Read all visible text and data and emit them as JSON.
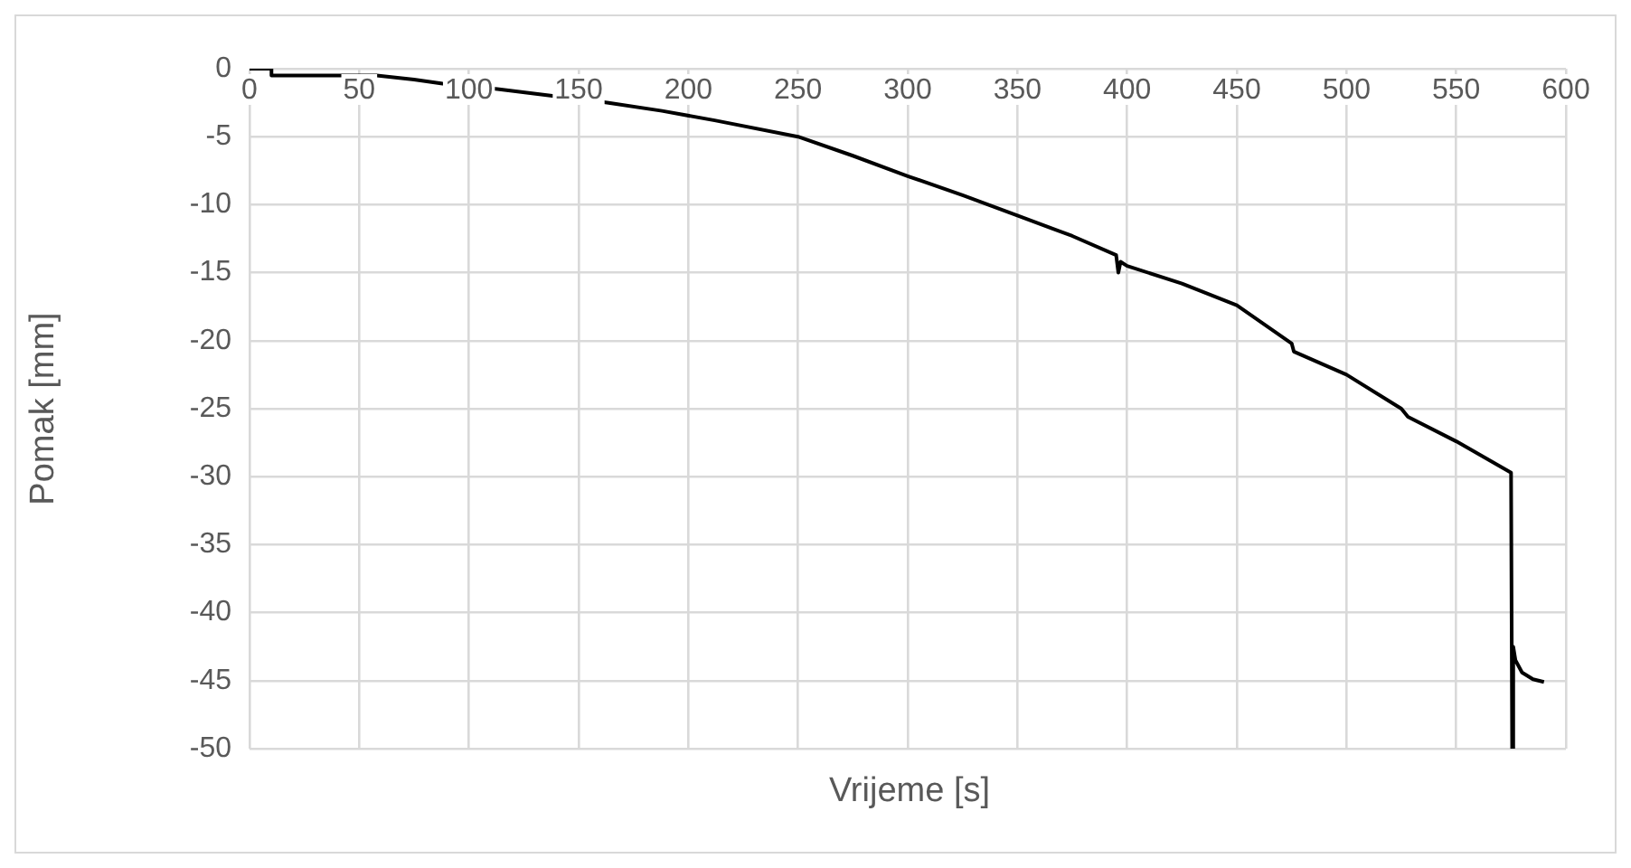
{
  "chart_data": {
    "type": "line",
    "xlabel": "Vrijeme [s]",
    "ylabel": "Pomak [mm]",
    "xlim": [
      0,
      600
    ],
    "xticks": [
      0,
      50,
      100,
      150,
      200,
      250,
      300,
      350,
      400,
      450,
      500,
      550,
      600
    ],
    "ylim": [
      -50,
      0
    ],
    "yticks": [
      -50,
      -45,
      -40,
      -35,
      -30,
      -25,
      -20,
      -15,
      -10,
      -5,
      0
    ],
    "grid": true,
    "legend": false,
    "marker": "none",
    "line_style": "solid",
    "series": [
      {
        "color": "#000000",
        "x": [
          0,
          10,
          10,
          30,
          58,
          75,
          88,
          113,
          138,
          163,
          188,
          212,
          250,
          275,
          300,
          325,
          350,
          375,
          395,
          396,
          397,
          400,
          425,
          450,
          475,
          476,
          500,
          525,
          528,
          550,
          575,
          575.5,
          576,
          577,
          580,
          585,
          590
        ],
        "values": [
          0,
          0,
          -0.5,
          -0.5,
          -0.5,
          -0.8,
          -1.1,
          -1.5,
          -2.0,
          -2.5,
          -3.1,
          -3.8,
          -5.0,
          -6.4,
          -7.9,
          -9.3,
          -10.8,
          -12.3,
          -13.7,
          -15,
          -14.2,
          -14.5,
          -15.8,
          -17.4,
          -20.2,
          -20.8,
          -22.5,
          -25,
          -25.6,
          -27.4,
          -29.7,
          -50,
          -42.5,
          -43.5,
          -44.4,
          -44.9,
          -45.1
        ]
      }
    ]
  }
}
